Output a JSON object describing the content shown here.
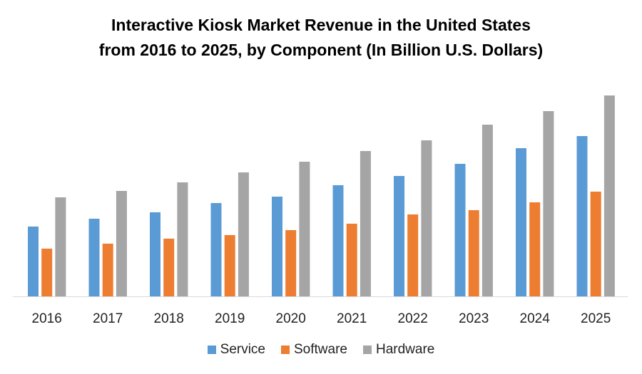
{
  "chart_data": {
    "type": "bar",
    "title_line1": "Interactive Kiosk Market Revenue in the United States",
    "title_line2": "from 2016 to 2025, by Component (In Billion U.S. Dollars)",
    "categories": [
      "2016",
      "2017",
      "2018",
      "2019",
      "2020",
      "2021",
      "2022",
      "2023",
      "2024",
      "2025"
    ],
    "series": [
      {
        "name": "Service",
        "color": "#5b9bd5",
        "values": [
          9.8,
          10.9,
          11.8,
          13.1,
          14.0,
          15.6,
          16.9,
          18.6,
          20.8,
          22.5
        ]
      },
      {
        "name": "Software",
        "color": "#ed7d31",
        "values": [
          6.7,
          7.4,
          8.1,
          8.6,
          9.3,
          10.2,
          11.5,
          12.1,
          13.2,
          14.7
        ]
      },
      {
        "name": "Hardware",
        "color": "#a5a5a5",
        "values": [
          13.9,
          14.8,
          16.0,
          17.4,
          18.9,
          20.4,
          21.9,
          24.1,
          26.0,
          28.2
        ]
      }
    ],
    "xlabel": "",
    "ylabel": "",
    "ylim": [
      0,
      30
    ],
    "grid": false,
    "legend_position": "bottom"
  }
}
